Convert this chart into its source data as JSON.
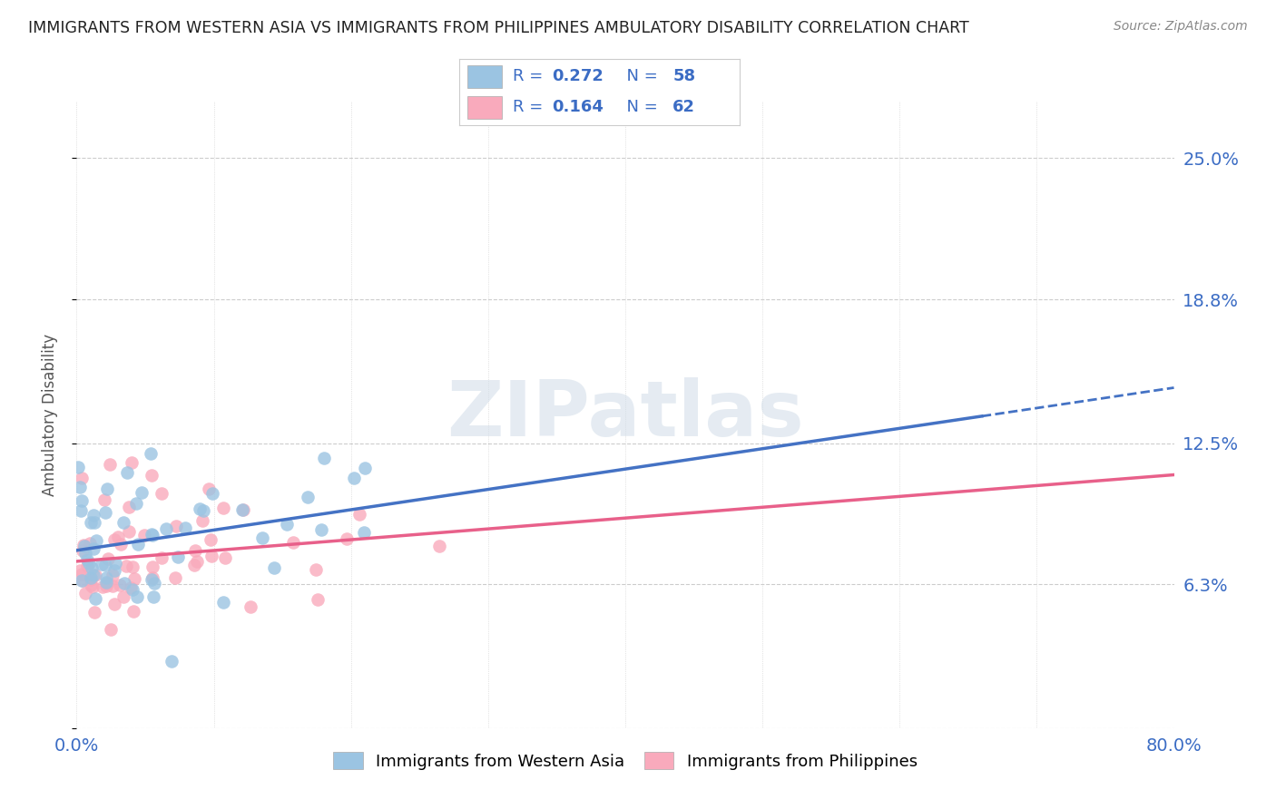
{
  "title": "IMMIGRANTS FROM WESTERN ASIA VS IMMIGRANTS FROM PHILIPPINES AMBULATORY DISABILITY CORRELATION CHART",
  "source": "Source: ZipAtlas.com",
  "ylabel": "Ambulatory Disability",
  "legend_label1": "Immigrants from Western Asia",
  "legend_label2": "Immigrants from Philippines",
  "R1": 0.272,
  "N1": 58,
  "R2": 0.164,
  "N2": 62,
  "xlim": [
    0.0,
    0.8
  ],
  "ylim": [
    0.0,
    0.275
  ],
  "ytick_vals": [
    0.0,
    0.063,
    0.125,
    0.188,
    0.25
  ],
  "ytick_labels": [
    "",
    "6.3%",
    "12.5%",
    "18.8%",
    "25.0%"
  ],
  "color1": "#9BC4E2",
  "color2": "#F9AABC",
  "line_color1": "#4472C4",
  "line_color2": "#E8608A",
  "legend_text_color": "#3B6CC4",
  "background": "#ffffff",
  "grid_color": "#cccccc",
  "title_color": "#222222",
  "source_color": "#888888",
  "axis_label_color": "#555555"
}
